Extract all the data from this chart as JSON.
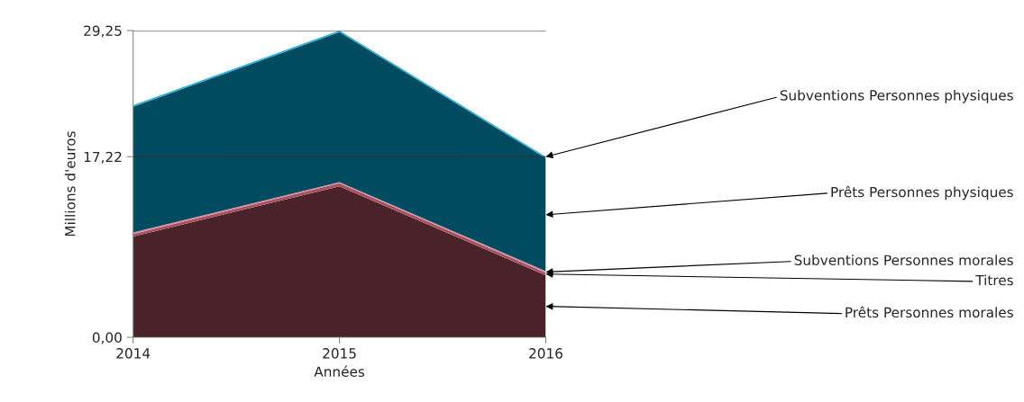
{
  "chart_data": {
    "type": "area",
    "stacked": true,
    "xlabel": "Années",
    "ylabel": "Millions d'euros",
    "x": [
      2014,
      2015,
      2016
    ],
    "xlim": [
      2014,
      2016
    ],
    "xticks": [
      2014,
      2015,
      2016
    ],
    "ylim": [
      0,
      29.25
    ],
    "yticks": [
      {
        "value": 0,
        "label": "0,00"
      },
      {
        "value": 17.22,
        "label": "17,22"
      },
      {
        "value": 29.25,
        "label": "29,25"
      }
    ],
    "grid": "y",
    "legend": false,
    "series": [
      {
        "name": "Prêts Personnes morales",
        "color": "#4a2229",
        "values": [
          9.6,
          14.4,
          5.9
        ]
      },
      {
        "name": "Titres",
        "color": "#a8505f",
        "values": [
          0.25,
          0.3,
          0.25
        ]
      },
      {
        "name": "Subventions Personnes morales",
        "color": "#d98c9c",
        "values": [
          0.15,
          0.1,
          0.15
        ]
      },
      {
        "name": "Prêts Personnes physiques",
        "color": "#004b5f",
        "values": [
          11.98,
          14.3,
          10.77
        ]
      },
      {
        "name": "Subventions Personnes physiques",
        "color": "#22aed6",
        "values": [
          0.15,
          0.15,
          0.15
        ]
      }
    ]
  }
}
